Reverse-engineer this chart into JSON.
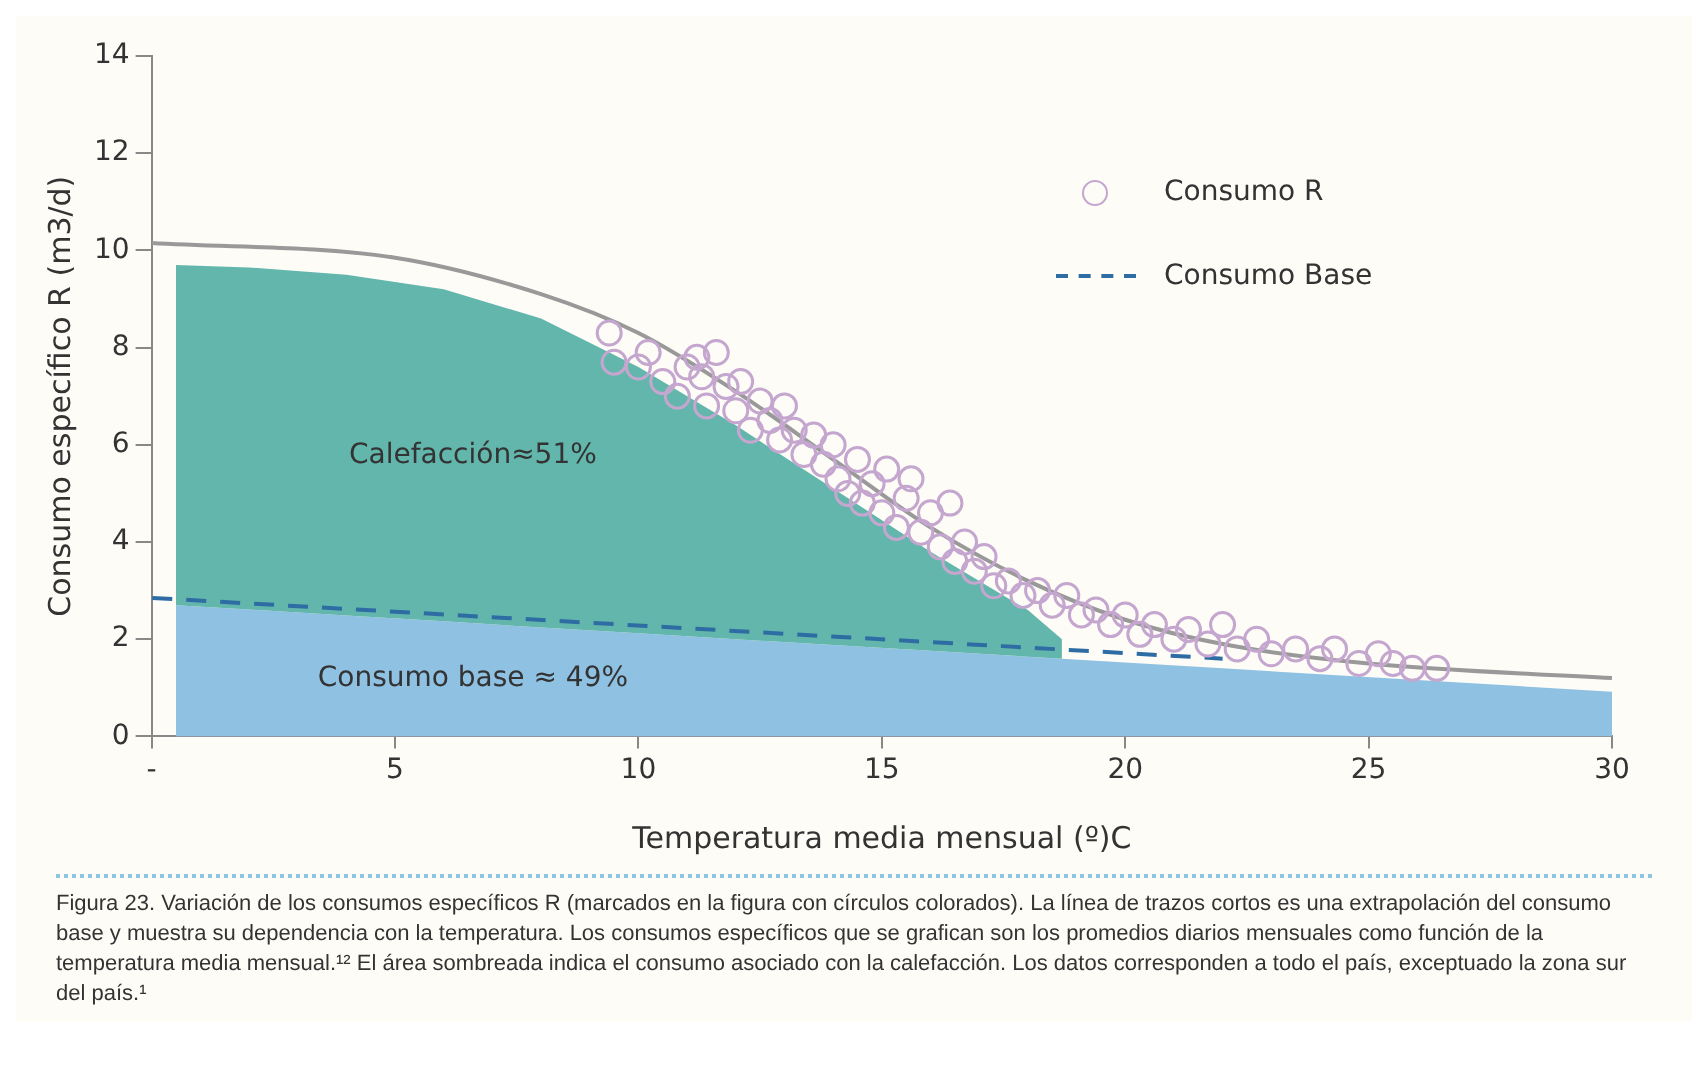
{
  "chart_data": {
    "type": "area",
    "xlabel": "Temperatura media mensual (º)C",
    "ylabel": "Consumo específico R (m3/d)",
    "stacked": true,
    "x": [
      0.5,
      2,
      4,
      6,
      8,
      10,
      12,
      14,
      16,
      18,
      18.7,
      20,
      22,
      24,
      26,
      28,
      30
    ],
    "series": [
      {
        "color": "#8fc1e3",
        "values": [
          2.7,
          2.61,
          2.49,
          2.37,
          2.24,
          2.12,
          2.0,
          1.88,
          1.76,
          1.64,
          1.6,
          1.52,
          1.4,
          1.28,
          1.16,
          1.04,
          0.92
        ]
      },
      {
        "color": "#62b6ac",
        "values": [
          7.0,
          7.04,
          7.01,
          6.83,
          6.36,
          5.48,
          4.4,
          3.22,
          2.04,
          0.96,
          0.4,
          null,
          null,
          null,
          null,
          null,
          null
        ]
      },
      {
        "type": "line",
        "color": "#999999",
        "marker": "none",
        "line_style": "solid",
        "x": [
          0,
          5,
          8,
          10,
          12,
          14,
          16,
          18,
          20,
          22,
          25,
          30
        ],
        "values": [
          10.15,
          9.85,
          9.1,
          8.3,
          7.1,
          5.7,
          4.3,
          3.2,
          2.4,
          1.9,
          1.5,
          1.2
        ]
      },
      {
        "type": "scatter",
        "name": "Consumo R",
        "color": "#c4a6cf",
        "marker": "circle",
        "x": [
          9.4,
          9.5,
          10.0,
          10.2,
          10.5,
          10.8,
          11.0,
          11.2,
          11.3,
          11.4,
          11.6,
          11.8,
          12.0,
          12.1,
          12.3,
          12.5,
          12.7,
          12.9,
          13.0,
          13.2,
          13.4,
          13.6,
          13.8,
          14.0,
          14.1,
          14.3,
          14.5,
          14.6,
          14.8,
          15.0,
          15.1,
          15.3,
          15.5,
          15.6,
          15.8,
          16.0,
          16.2,
          16.4,
          16.5,
          16.7,
          16.9,
          17.1,
          17.3,
          17.6,
          17.9,
          18.2,
          18.5,
          18.8,
          19.1,
          19.4,
          19.7,
          20.0,
          20.3,
          20.6,
          21.0,
          21.3,
          21.7,
          22.0,
          22.3,
          22.7,
          23.0,
          23.5,
          24.0,
          24.3,
          24.8,
          25.2,
          25.5,
          25.9,
          26.4
        ],
        "values": [
          8.3,
          7.7,
          7.6,
          7.9,
          7.3,
          7.0,
          7.6,
          7.8,
          7.4,
          6.8,
          7.9,
          7.2,
          6.7,
          7.3,
          6.3,
          6.9,
          6.5,
          6.1,
          6.8,
          6.3,
          5.8,
          6.2,
          5.6,
          6.0,
          5.3,
          5.0,
          5.7,
          4.8,
          5.2,
          4.6,
          5.5,
          4.3,
          4.9,
          5.3,
          4.2,
          4.6,
          3.9,
          4.8,
          3.6,
          4.0,
          3.4,
          3.7,
          3.1,
          3.2,
          2.9,
          3.0,
          2.7,
          2.9,
          2.5,
          2.6,
          2.3,
          2.5,
          2.1,
          2.3,
          2.0,
          2.2,
          1.9,
          2.3,
          1.8,
          2.0,
          1.7,
          1.8,
          1.6,
          1.8,
          1.5,
          1.7,
          1.5,
          1.4,
          1.4
        ]
      },
      {
        "type": "line",
        "name": "Consumo Base",
        "color": "#2e6da4",
        "marker": "none",
        "line_style": "dashed",
        "x": [
          0,
          22
        ],
        "values": [
          2.85,
          1.6
        ]
      }
    ],
    "xlim": [
      0,
      30
    ],
    "xticks": [
      {
        "value": 0,
        "label": "-"
      },
      5,
      10,
      15,
      20,
      25,
      30
    ],
    "ylim": [
      0,
      14
    ],
    "yticks": [
      0,
      2,
      4,
      6,
      8,
      10,
      12,
      14
    ],
    "grid": false,
    "legend": "top right",
    "annotations": [
      "Consumo base ≈ 49%",
      "Calefacción≈51%",
      "Figura 23. Variación de los consumos específicos R (marcados en la figura con círculos colorados). La línea de trazos cortos es una extrapolación del consumo base y muestra su dependencia con la temperatura. Los consumos específicos que se grafican son los promedios diarios mensuales como función de la temperatura media mensual.¹² El área sombreada indica el consumo asociado con la calefacción. Los datos corresponden a todo el país, exceptuado la zona sur del país.¹"
    ]
  }
}
